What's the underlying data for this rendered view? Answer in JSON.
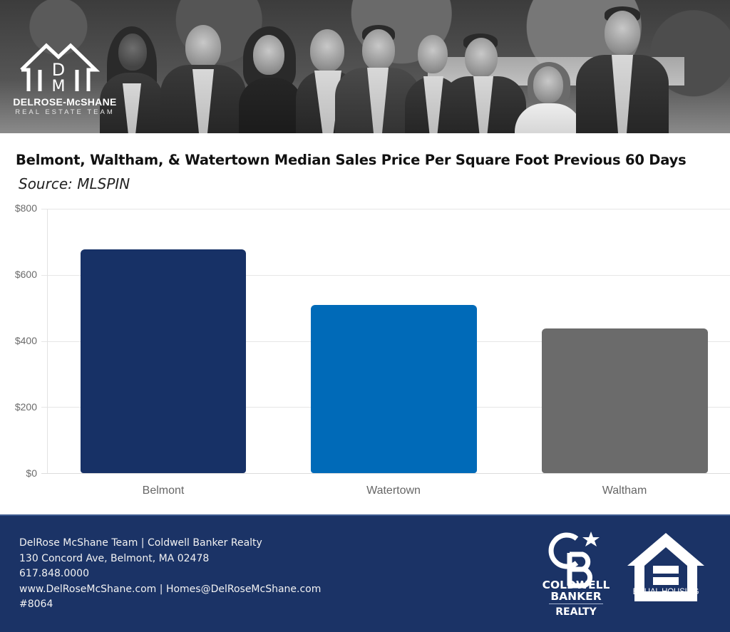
{
  "banner": {
    "brand_name": "DELROSE-McSHANE",
    "brand_tagline": "REAL ESTATE TEAM",
    "logo_monogram": "DM",
    "photo_description": "grayscale team group photo of nine people outdoors"
  },
  "header": {
    "title": "Belmont, Waltham, & Watertown Median Sales Price Per Square Foot Previous 60 Days",
    "subtitle": "Source: MLSPIN"
  },
  "chart_data": {
    "type": "bar",
    "title": "Belmont, Waltham, & Watertown Median Sales Price Per Square Foot Previous 60 Days",
    "subtitle": "Source: MLSPIN",
    "categories": [
      "Belmont",
      "Watertown",
      "Waltham"
    ],
    "values": [
      677,
      509,
      438
    ],
    "colors": [
      "#173166",
      "#006ab8",
      "#6b6b6b"
    ],
    "xlabel": "",
    "ylabel": "",
    "ylim": [
      0,
      800
    ],
    "yticks": [
      0,
      200,
      400,
      600,
      800
    ],
    "ytick_labels": [
      "$0",
      "$200",
      "$400",
      "$600",
      "$800"
    ],
    "grid": true,
    "legend": "none"
  },
  "footer": {
    "lines": [
      "DelRose McShane Team | Coldwell Banker Realty",
      "130 Concord Ave, Belmont, MA 02478",
      "617.848.0000",
      "www.DelRoseMcShane.com | Homes@DelRoseMcShane.com",
      "#8064"
    ],
    "cb_logo": {
      "line1": "COLDWELL",
      "line2": "BANKER",
      "line3": "REALTY"
    },
    "eho_logo": {
      "line1": "EQUAL HOUSING",
      "line2": "OPPORTUNITY"
    },
    "background_color": "#1b3366"
  }
}
